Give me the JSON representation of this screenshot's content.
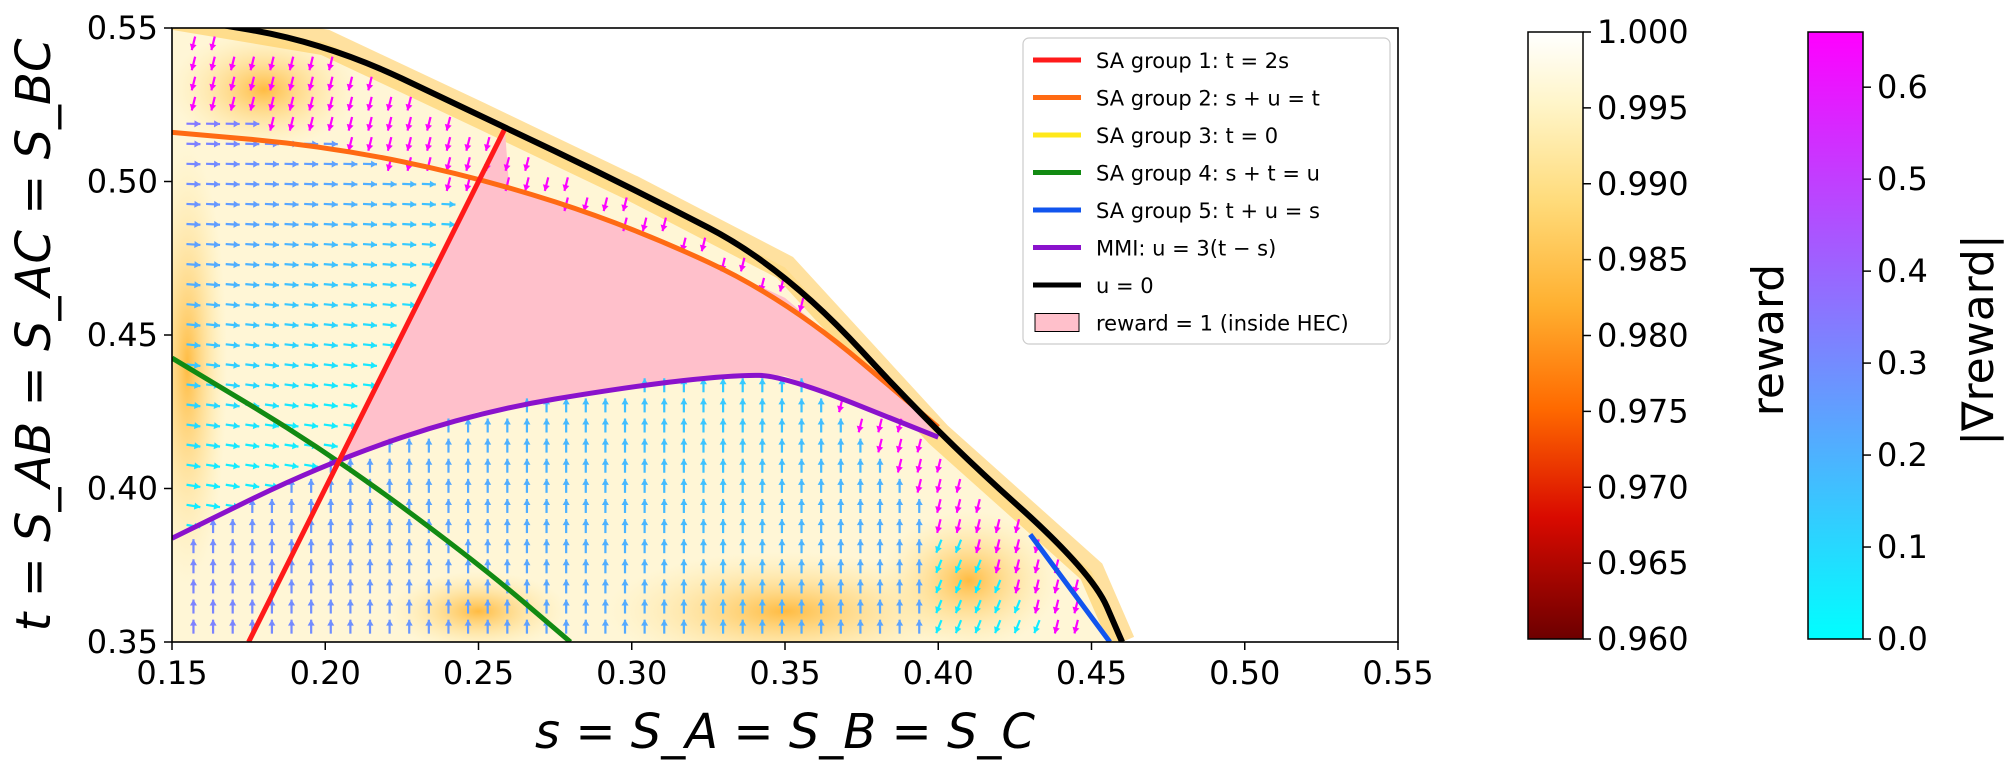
{
  "chart_data": {
    "type": "contour-quiver",
    "xlabel": "s = S_A = S_B = S_C",
    "ylabel": "t = S_AB = S_AC = S_BC",
    "xlim": [
      0.15,
      0.55
    ],
    "ylim": [
      0.35,
      0.55
    ],
    "x_ticks": [
      "0.15",
      "0.20",
      "0.25",
      "0.30",
      "0.35",
      "0.40",
      "0.45",
      "0.50",
      "0.55"
    ],
    "y_ticks": [
      "0.35",
      "0.40",
      "0.45",
      "0.50",
      "0.55"
    ],
    "background": "reward heatmap (0.96–1.00) over feasible region bounded by u = 0",
    "legend_placement": "upper-right",
    "legend": [
      {
        "key": "sa1",
        "label": "SA group 1: t = 2s",
        "color": "#ff1a1a"
      },
      {
        "key": "sa2",
        "label": "SA group 2: s + u = t",
        "color": "#ff6a13"
      },
      {
        "key": "sa3",
        "label": "SA group 3: t = 0",
        "color": "#ffe81a"
      },
      {
        "key": "sa4",
        "label": "SA group 4: s + t = u",
        "color": "#128a12"
      },
      {
        "key": "sa5",
        "label": "SA group 5: t + u = s",
        "color": "#1155ee"
      },
      {
        "key": "mmi",
        "label": "MMI: u = 3(t − s)",
        "color": "#8a12cc"
      },
      {
        "key": "u0",
        "label": "u = 0",
        "color": "#000000"
      },
      {
        "key": "hec",
        "label": "reward  = 1 (inside HEC)",
        "color": "#ffc0cb"
      }
    ],
    "curves": {
      "u0": [
        [
          0.15,
          0.5537
        ],
        [
          0.2,
          0.5453
        ],
        [
          0.25,
          0.5218
        ],
        [
          0.3,
          0.4979
        ],
        [
          0.35,
          0.472
        ],
        [
          0.4,
          0.4176
        ],
        [
          0.45,
          0.373
        ],
        [
          0.46,
          0.35
        ]
      ],
      "sa1": [
        [
          0.175,
          0.35
        ],
        [
          0.25,
          0.5
        ],
        [
          0.2586,
          0.5172
        ]
      ],
      "sa2": [
        [
          0.15,
          0.516
        ],
        [
          0.2,
          0.5116
        ],
        [
          0.25,
          0.5014
        ],
        [
          0.3,
          0.4853
        ],
        [
          0.35,
          0.4621
        ],
        [
          0.4,
          0.42
        ]
      ],
      "sa4": [
        [
          0.15,
          0.4425
        ],
        [
          0.2,
          0.4125
        ],
        [
          0.25,
          0.3756
        ],
        [
          0.28,
          0.35
        ]
      ],
      "sa5": [
        [
          0.43,
          0.385
        ],
        [
          0.456,
          0.35
        ]
      ],
      "mmi": [
        [
          0.15,
          0.3838
        ],
        [
          0.2,
          0.4083
        ],
        [
          0.25,
          0.425
        ],
        [
          0.3,
          0.4333
        ],
        [
          0.3333,
          0.437
        ],
        [
          0.35,
          0.4367
        ],
        [
          0.4,
          0.4167
        ]
      ]
    },
    "colorbars": [
      {
        "label": "reward",
        "min": 0.96,
        "max": 1.0,
        "ticks": [
          "0.960",
          "0.965",
          "0.970",
          "0.975",
          "0.980",
          "0.985",
          "0.990",
          "0.995",
          "1.000"
        ],
        "colormap": "afmhot"
      },
      {
        "label": "|∇reward|",
        "min": 0.0,
        "max": 0.66,
        "ticks": [
          "0.0",
          "0.1",
          "0.2",
          "0.3",
          "0.4",
          "0.5",
          "0.6"
        ],
        "colormap": "cool"
      }
    ]
  }
}
